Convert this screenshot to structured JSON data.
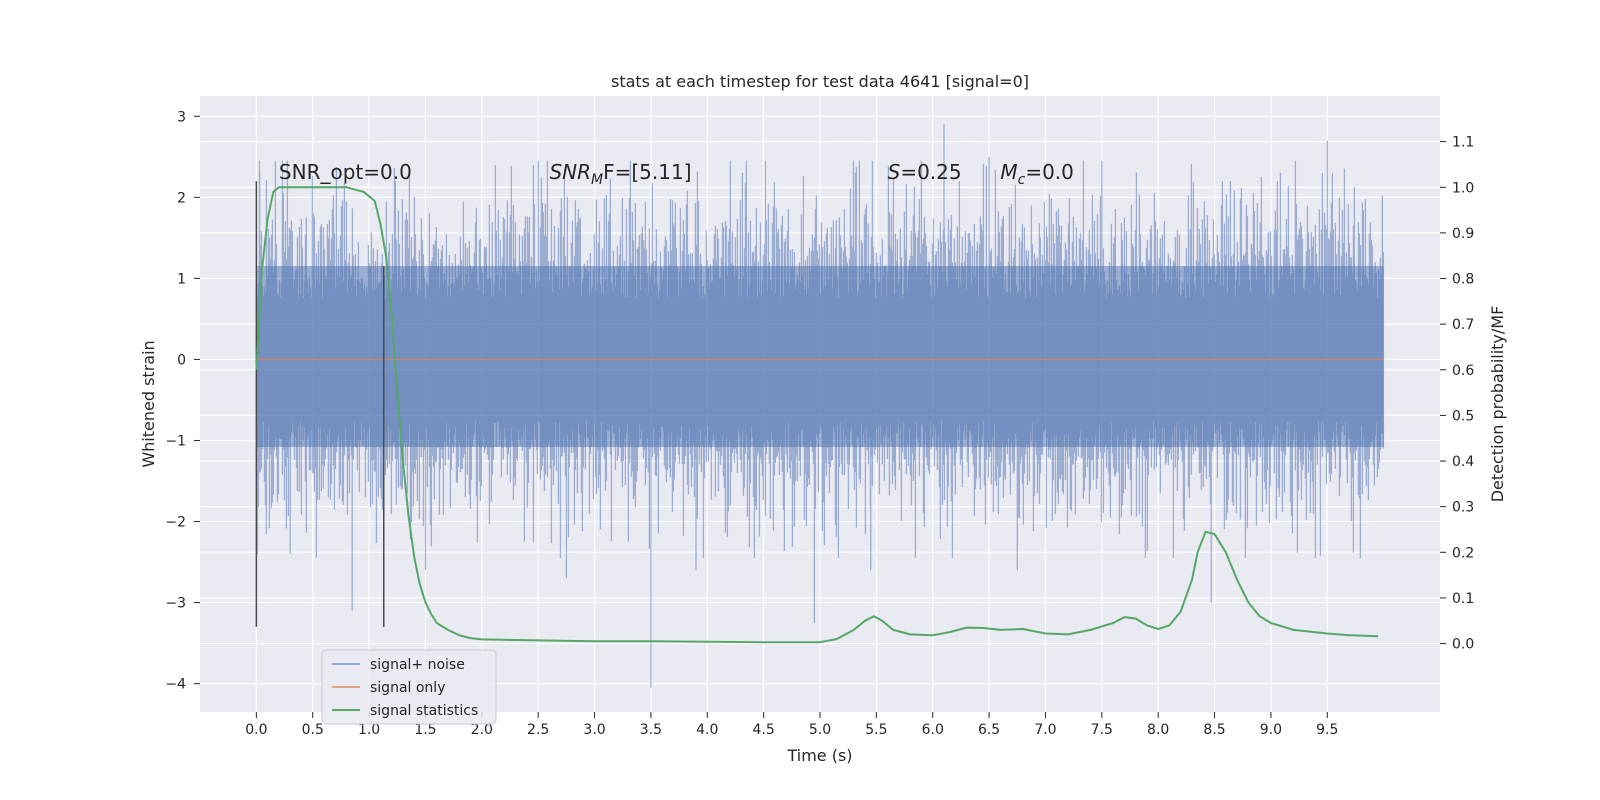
{
  "chart_data": {
    "type": "line",
    "title": "stats at each timestep for test data 4641 [signal=0]",
    "xlabel": "Time (s)",
    "ylabel": "Whitened strain",
    "y2label": "Detection probability/MF",
    "xlim": [
      -0.5,
      10.5
    ],
    "ylim": [
      -4.35,
      3.25
    ],
    "y2lim": [
      -0.15,
      1.2
    ],
    "x_ticks": [
      0.0,
      0.5,
      1.0,
      1.5,
      2.0,
      2.5,
      3.0,
      3.5,
      4.0,
      4.5,
      5.0,
      5.5,
      6.0,
      6.5,
      7.0,
      7.5,
      8.0,
      8.5,
      9.0,
      9.5
    ],
    "x_tick_labels": [
      "0.0",
      "0.5",
      "1.0",
      "1.5",
      "2.0",
      "2.5",
      "3.0",
      "3.5",
      "4.0",
      "4.5",
      "5.0",
      "5.5",
      "6.0",
      "6.5",
      "7.0",
      "7.5",
      "8.0",
      "8.5",
      "9.0",
      "9.5"
    ],
    "y_ticks": [
      3,
      2,
      1,
      0,
      -1,
      -2,
      -3,
      -4
    ],
    "y_tick_labels": [
      "3",
      "2",
      "1",
      "0",
      "−1",
      "−2",
      "−3",
      "−4"
    ],
    "y2_ticks": [
      1.1,
      1.0,
      0.9,
      0.8,
      0.7,
      0.6,
      0.5,
      0.4,
      0.3,
      0.2,
      0.1,
      0.0
    ],
    "y2_tick_labels": [
      "1.1",
      "1.0",
      "0.9",
      "0.8",
      "0.7",
      "0.6",
      "0.5",
      "0.4",
      "0.3",
      "0.2",
      "0.1",
      "0.0"
    ],
    "grid": true,
    "legend_position": "lower-left",
    "series": [
      {
        "name": "signal+ noise",
        "color": "#4c72b0",
        "axis": "left",
        "style": "dense-noise",
        "x_range": [
          0.0,
          10.0
        ],
        "typical_envelope": [
          -1.5,
          1.6
        ],
        "spikes": [
          {
            "x": 0.03,
            "y": 2.3
          },
          {
            "x": 0.08,
            "y": -1.8
          },
          {
            "x": 0.3,
            "y": -2.4
          },
          {
            "x": 0.85,
            "y": -3.1
          },
          {
            "x": 1.5,
            "y": -2.6
          },
          {
            "x": 2.75,
            "y": -2.7
          },
          {
            "x": 3.5,
            "y": -4.05
          },
          {
            "x": 3.9,
            "y": -2.6
          },
          {
            "x": 4.95,
            "y": -3.25
          },
          {
            "x": 5.45,
            "y": -2.6
          },
          {
            "x": 6.1,
            "y": 2.9
          },
          {
            "x": 6.5,
            "y": 2.5
          },
          {
            "x": 6.75,
            "y": -2.6
          },
          {
            "x": 8.47,
            "y": -3.0
          },
          {
            "x": 9.5,
            "y": 2.7
          },
          {
            "x": 7.5,
            "y": 2.45
          }
        ]
      },
      {
        "name": "signal only",
        "color": "#dd8452",
        "axis": "left",
        "x": [
          0.0,
          10.0
        ],
        "y": [
          0.0,
          0.0
        ]
      },
      {
        "name": "signal statistics",
        "color": "#55a868",
        "axis": "right",
        "x": [
          0.0,
          0.05,
          0.1,
          0.15,
          0.2,
          0.3,
          0.5,
          0.8,
          0.95,
          1.05,
          1.1,
          1.15,
          1.2,
          1.25,
          1.3,
          1.35,
          1.4,
          1.45,
          1.5,
          1.55,
          1.6,
          1.7,
          1.8,
          1.9,
          2.0,
          2.5,
          3.0,
          3.5,
          4.0,
          4.5,
          5.0,
          5.15,
          5.3,
          5.4,
          5.48,
          5.55,
          5.65,
          5.8,
          6.0,
          6.15,
          6.3,
          6.45,
          6.6,
          6.8,
          7.0,
          7.2,
          7.4,
          7.6,
          7.7,
          7.8,
          7.9,
          8.0,
          8.1,
          8.2,
          8.3,
          8.35,
          8.42,
          8.5,
          8.6,
          8.7,
          8.8,
          8.9,
          9.0,
          9.2,
          9.5,
          9.7,
          9.95
        ],
        "y": [
          0.6,
          0.82,
          0.93,
          0.99,
          1.0,
          1.0,
          1.0,
          1.0,
          0.99,
          0.97,
          0.92,
          0.85,
          0.72,
          0.55,
          0.4,
          0.28,
          0.19,
          0.13,
          0.09,
          0.065,
          0.045,
          0.03,
          0.018,
          0.012,
          0.009,
          0.007,
          0.005,
          0.005,
          0.004,
          0.003,
          0.003,
          0.01,
          0.03,
          0.05,
          0.06,
          0.05,
          0.03,
          0.02,
          0.018,
          0.025,
          0.035,
          0.034,
          0.03,
          0.032,
          0.022,
          0.02,
          0.03,
          0.045,
          0.058,
          0.055,
          0.04,
          0.032,
          0.04,
          0.07,
          0.14,
          0.2,
          0.245,
          0.24,
          0.2,
          0.14,
          0.09,
          0.06,
          0.045,
          0.03,
          0.022,
          0.018,
          0.016
        ]
      }
    ],
    "vlines": [
      {
        "x": 0.0,
        "y_from": -3.3,
        "y_to": 2.2,
        "color": "#4a4a4a"
      },
      {
        "x": 1.13,
        "y_from": -3.3,
        "y_to": 1.15,
        "color": "#4a4a4a"
      }
    ],
    "annotations": [
      {
        "id": "snr-opt",
        "text": "SNR_opt=0.0",
        "x": 0.2,
        "y": 2.2
      },
      {
        "id": "snr-mf",
        "text": "SNR",
        "sub": "M",
        "tail": "F=[5.11]",
        "italic": true,
        "x": 2.6,
        "y": 2.2
      },
      {
        "id": "s-val",
        "text": "S",
        "tail": "=0.25",
        "italic": true,
        "x": 5.6,
        "y": 2.2
      },
      {
        "id": "mc-val",
        "text": "M",
        "sub": "c",
        "tail": "=0.0",
        "italic": true,
        "x": 6.6,
        "y": 2.2
      }
    ]
  }
}
